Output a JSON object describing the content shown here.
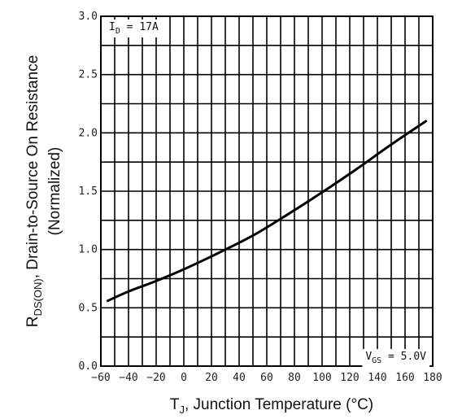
{
  "chart_data": {
    "type": "line",
    "x_axis": {
      "label_main": "T",
      "label_sub": "J",
      "label_rest": ", Junction Temperature (°C)",
      "min": -60,
      "max": 180,
      "ticks": [
        -60,
        -40,
        -20,
        0,
        20,
        40,
        60,
        80,
        100,
        120,
        140,
        160,
        180
      ],
      "tick_labels": [
        "−60",
        "−40",
        "−20",
        "0",
        "20",
        "40",
        "60",
        "80",
        "100",
        "120",
        "140",
        "160",
        "180"
      ],
      "minor_step": 10
    },
    "y_axis": {
      "label_main": "R",
      "label_sub": "DS(ON)",
      "label_rest": ", Drain-to-Source On Resistance",
      "label_line2": "(Normalized)",
      "min": 0.0,
      "max": 3.0,
      "ticks": [
        0.0,
        0.5,
        1.0,
        1.5,
        2.0,
        2.5,
        3.0
      ],
      "tick_labels": [
        "0.0",
        "0.5",
        "1.0",
        "1.5",
        "2.0",
        "2.5",
        "3.0"
      ],
      "minor_step": 0.25
    },
    "grid": true,
    "annotations": [
      {
        "main": "I",
        "sub": "D",
        "rest": " = 17A",
        "position": "top-left"
      },
      {
        "main": "V",
        "sub": "GS",
        "rest": " = 5.0V",
        "position": "bottom-right"
      }
    ],
    "series": [
      {
        "x": [
          -55,
          -40,
          -20,
          0,
          25,
          50,
          75,
          100,
          125,
          150,
          175
        ],
        "y": [
          0.56,
          0.64,
          0.73,
          0.83,
          0.97,
          1.12,
          1.3,
          1.49,
          1.69,
          1.9,
          2.1
        ]
      }
    ],
    "colors": {
      "line": "#000000",
      "grid": "#000000"
    }
  }
}
